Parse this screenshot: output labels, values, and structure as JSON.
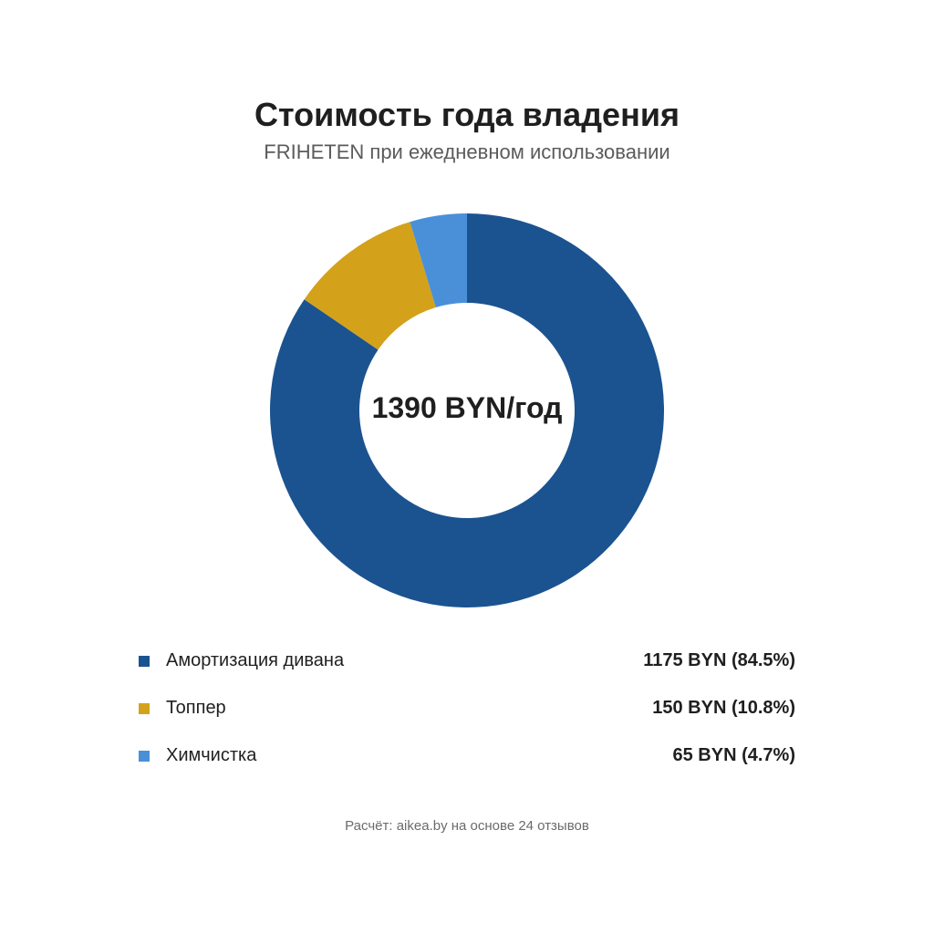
{
  "chart_data": {
    "type": "pie",
    "title": "Стоимость года владения",
    "subtitle": "FRIHETEN при ежедневном использовании",
    "center_label": "1390 BYN/год",
    "slices": [
      {
        "label": "Амортизация дивана",
        "value": 1175,
        "percent": 84.5,
        "display": "1175 BYN (84.5%)",
        "color": "#1b5390"
      },
      {
        "label": "Топпер",
        "value": 150,
        "percent": 10.8,
        "display": "150 BYN (10.8%)",
        "color": "#d4a11b"
      },
      {
        "label": "Химчистка",
        "value": 65,
        "percent": 4.7,
        "display": "65 BYN (4.7%)",
        "color": "#4a90d9"
      }
    ],
    "legend_placement": "bottom",
    "footnote": "Расчёт: aikea.by на основе 24 отзывов"
  }
}
